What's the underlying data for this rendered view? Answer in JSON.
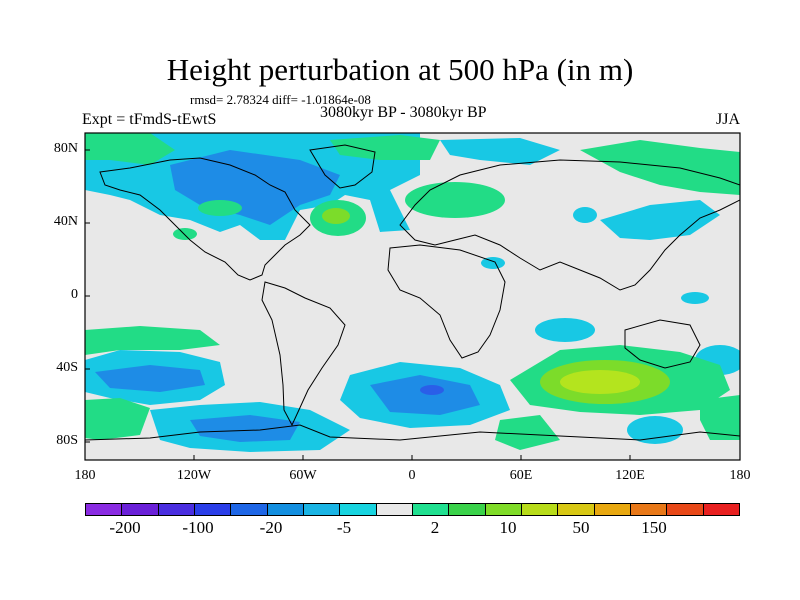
{
  "header": {
    "title": "Height perturbation at 500 hPa (in m)",
    "stats": "rmsd= 2.78324 diff= -1.01864e-08",
    "experiment": "Expt = tFmdS-tEwtS",
    "period": "3080kyr BP - 3080kyr BP",
    "season": "JJA"
  },
  "axes": {
    "lat_labels": [
      "80N",
      "40N",
      "0",
      "40S",
      "80S"
    ],
    "lon_labels": [
      "180",
      "120W",
      "60W",
      "0",
      "60E",
      "120E",
      "180"
    ]
  },
  "colorbar": {
    "colors": [
      "#8a2be2",
      "#6a20d8",
      "#4a2ee0",
      "#2a3ee8",
      "#1e66e6",
      "#138fe0",
      "#1ab4e4",
      "#18d4e0",
      "#e8e8e8",
      "#20e090",
      "#3ad24a",
      "#80dc28",
      "#b8dc1a",
      "#d8c814",
      "#e8a810",
      "#e87818",
      "#e84818",
      "#e82020"
    ],
    "labels": [
      "-200",
      "-100",
      "-20",
      "-5",
      "2",
      "10",
      "50",
      "150"
    ]
  },
  "palette": {
    "background": "#e8e8e8",
    "cyan": "#18c8e4",
    "blue": "#1e8ce6",
    "green": "#22dc86",
    "lime": "#7cdc2a",
    "yellow_green": "#b4e41e"
  }
}
